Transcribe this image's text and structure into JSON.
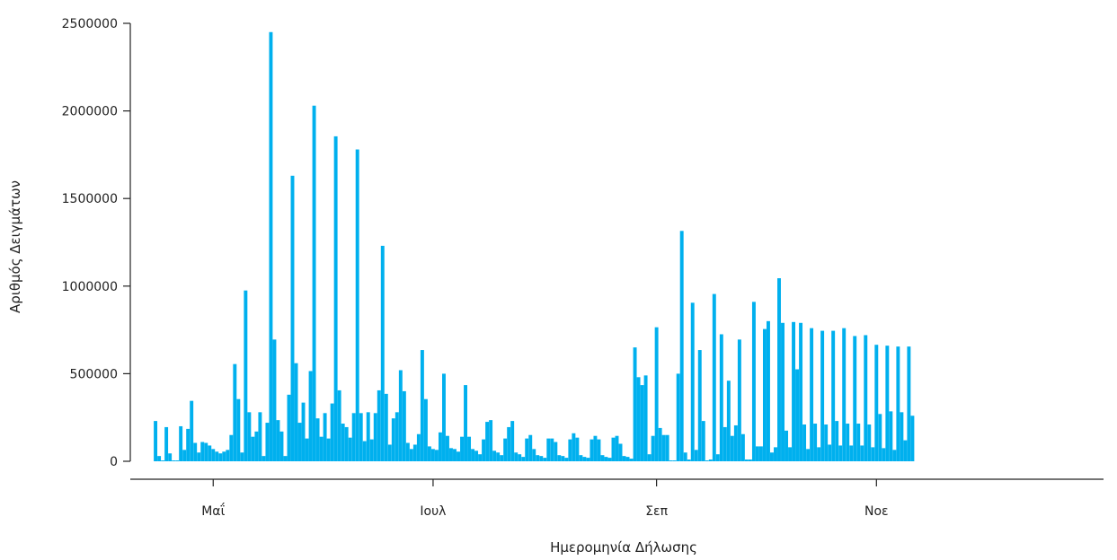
{
  "chart_data": {
    "type": "bar",
    "title": "",
    "xlabel": "Ημερομηνία Δήλωσης",
    "ylabel": "Αριθμός Δειγμάτων",
    "ylim": [
      0,
      2500000
    ],
    "yticks": [
      0,
      500000,
      1000000,
      1500000,
      2000000,
      2500000
    ],
    "ytick_labels": [
      "0",
      "500000",
      "1000000",
      "1500000",
      "2000000",
      "2500000"
    ],
    "xlim": [
      "2020-04-08",
      "2021-01-03"
    ],
    "xticks": [
      {
        "date": "2020-05-01",
        "label": "Μαΐ"
      },
      {
        "date": "2020-07-01",
        "label": "Ιουλ"
      },
      {
        "date": "2020-09-01",
        "label": "Σεπ"
      },
      {
        "date": "2020-11-01",
        "label": "Νοε"
      }
    ],
    "grid": false,
    "bar_color": "#00B0EE",
    "series": [
      {
        "start_date": "2020-04-15",
        "values": [
          230000,
          30000,
          5000,
          195000,
          45000,
          5000,
          5000,
          200000,
          65000,
          185000,
          345000,
          105000,
          50000,
          110000,
          105000,
          90000,
          70000,
          55000,
          45000,
          55000,
          65000,
          150000,
          555000,
          355000,
          50000,
          975000,
          280000,
          140000,
          170000,
          280000,
          30000,
          220000,
          2450000,
          695000,
          235000,
          170000,
          30000,
          380000,
          1630000,
          560000,
          220000,
          335000,
          130000,
          515000,
          2030000,
          245000,
          140000,
          275000,
          130000,
          330000,
          1855000,
          405000,
          215000,
          195000,
          135000,
          275000,
          1780000,
          275000,
          115000,
          280000,
          125000,
          275000,
          405000,
          1230000,
          385000,
          95000,
          245000,
          280000,
          520000,
          400000,
          105000,
          70000,
          95000,
          155000,
          635000,
          355000,
          85000,
          70000,
          65000,
          165000,
          500000,
          145000,
          75000,
          70000,
          55000,
          140000,
          435000,
          140000,
          70000,
          60000,
          40000,
          125000,
          225000,
          235000,
          60000,
          50000,
          35000,
          130000,
          195000,
          230000,
          50000,
          40000,
          25000,
          130000,
          150000,
          70000,
          35000,
          30000,
          20000,
          130000,
          130000,
          110000,
          35000,
          30000,
          20000,
          125000,
          160000,
          135000,
          35000,
          25000,
          20000,
          125000,
          145000,
          125000,
          35000,
          25000,
          20000,
          135000,
          145000,
          100000,
          30000,
          25000,
          15000,
          650000,
          480000,
          435000,
          490000,
          40000,
          145000,
          765000,
          190000,
          150000,
          150000,
          5000,
          5000,
          500000,
          1315000,
          50000,
          10000,
          905000,
          65000,
          635000,
          230000,
          5000,
          10000,
          955000,
          40000,
          725000,
          195000,
          460000,
          145000,
          205000,
          695000,
          155000,
          10000,
          10000,
          910000,
          85000,
          85000,
          755000,
          800000,
          50000,
          80000,
          1045000,
          790000,
          175000,
          80000,
          795000,
          525000,
          790000,
          210000,
          70000,
          760000,
          215000,
          80000,
          745000,
          210000,
          95000,
          745000,
          230000,
          90000,
          760000,
          215000,
          90000,
          715000,
          215000,
          90000,
          720000,
          210000,
          80000,
          665000,
          270000,
          75000,
          660000,
          285000,
          65000,
          655000,
          280000,
          120000,
          655000,
          260000
        ]
      }
    ]
  }
}
